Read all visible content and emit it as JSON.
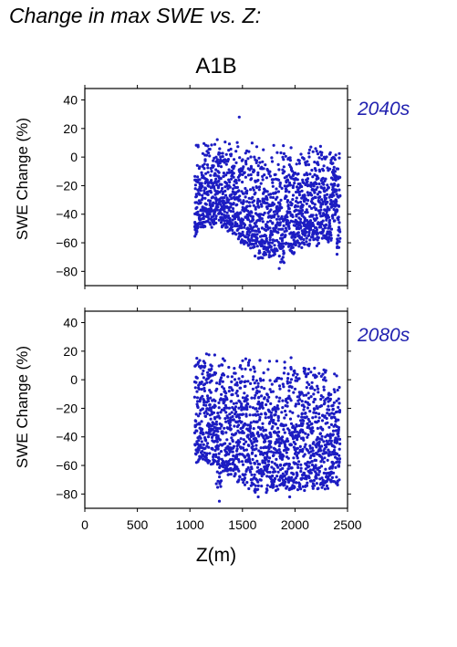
{
  "header": {
    "title": "Change in max SWE vs. Z:"
  },
  "colors": {
    "points": "#1c1cc2",
    "period_label": "#2222b0"
  },
  "chart_data": [
    {
      "type": "scatter",
      "scenario": "A1B",
      "period": "2040s",
      "ylabel": "SWE Change (%)",
      "xlabel": "",
      "xlim": [
        0,
        2500
      ],
      "ylim": [
        -90,
        48
      ],
      "yticks": [
        40,
        20,
        0,
        -20,
        -40,
        -60,
        -80
      ],
      "xticks": [
        0,
        500,
        1000,
        1500,
        2000,
        2500
      ],
      "grid": false,
      "series": [
        {
          "profile": [
            [
              1045,
              -57,
              12
            ],
            [
              1100,
              -50,
              12
            ],
            [
              1150,
              -48,
              13
            ],
            [
              1200,
              -50,
              13
            ],
            [
              1250,
              -47,
              13
            ],
            [
              1300,
              -52,
              14
            ],
            [
              1350,
              -55,
              13
            ],
            [
              1400,
              -56,
              13
            ],
            [
              1450,
              -62,
              13
            ],
            [
              1500,
              -64,
              12
            ],
            [
              1550,
              -68,
              12
            ],
            [
              1600,
              -72,
              12
            ],
            [
              1650,
              -75,
              12
            ],
            [
              1700,
              -72,
              12
            ],
            [
              1750,
              -73,
              12
            ],
            [
              1800,
              -70,
              12
            ],
            [
              1850,
              -78,
              12
            ],
            [
              1900,
              -68,
              11
            ],
            [
              1950,
              -72,
              11
            ],
            [
              2000,
              -64,
              11
            ],
            [
              2050,
              -66,
              11
            ],
            [
              2100,
              -65,
              11
            ],
            [
              2150,
              -60,
              11
            ],
            [
              2200,
              -63,
              10
            ],
            [
              2250,
              -60,
              10
            ],
            [
              2300,
              -62,
              8
            ],
            [
              2350,
              -45,
              6
            ],
            [
              2400,
              -68,
              6
            ]
          ],
          "outliers": [
            [
              1470,
              28
            ],
            [
              1700,
              -68
            ],
            [
              1850,
              -78
            ],
            [
              2400,
              -68
            ]
          ]
        }
      ]
    },
    {
      "type": "scatter",
      "scenario": "A1B",
      "period": "2080s",
      "ylabel": "SWE Change (%)",
      "xlabel": "Z(m)",
      "xlim": [
        0,
        2500
      ],
      "ylim": [
        -90,
        48
      ],
      "yticks": [
        40,
        20,
        0,
        -20,
        -40,
        -60,
        -80
      ],
      "xticks": [
        0,
        500,
        1000,
        1500,
        2000,
        2500
      ],
      "grid": false,
      "series": [
        {
          "profile": [
            [
              1045,
              -60,
              22
            ],
            [
              1100,
              -58,
              22
            ],
            [
              1150,
              -62,
              22
            ],
            [
              1200,
              -62,
              22
            ],
            [
              1250,
              -80,
              22
            ],
            [
              1300,
              -68,
              21
            ],
            [
              1350,
              -70,
              21
            ],
            [
              1400,
              -72,
              21
            ],
            [
              1450,
              -75,
              21
            ],
            [
              1500,
              -78,
              20
            ],
            [
              1550,
              -80,
              20
            ],
            [
              1600,
              -82,
              20
            ],
            [
              1650,
              -80,
              20
            ],
            [
              1700,
              -82,
              19
            ],
            [
              1750,
              -80,
              18
            ],
            [
              1800,
              -80,
              17
            ],
            [
              1850,
              -78,
              17
            ],
            [
              1900,
              -80,
              17
            ],
            [
              1950,
              -82,
              16
            ],
            [
              2000,
              -80,
              16
            ],
            [
              2050,
              -80,
              16
            ],
            [
              2100,
              -78,
              15
            ],
            [
              2150,
              -80,
              14
            ],
            [
              2200,
              -80,
              14
            ],
            [
              2250,
              -80,
              12
            ],
            [
              2300,
              -78,
              10
            ],
            [
              2350,
              -76,
              10
            ],
            [
              2400,
              -78,
              10
            ]
          ],
          "outliers": [
            [
              1280,
              -85
            ],
            [
              1650,
              -82
            ],
            [
              1950,
              -82
            ]
          ]
        }
      ]
    }
  ],
  "xaxis": {
    "title": "Z(m)",
    "tick_labels": [
      "0",
      "500",
      "1000",
      "1500",
      "2000",
      "2500"
    ]
  },
  "ytick_labels": [
    "40",
    "20",
    "0",
    "−20",
    "−40",
    "−60",
    "−80"
  ]
}
